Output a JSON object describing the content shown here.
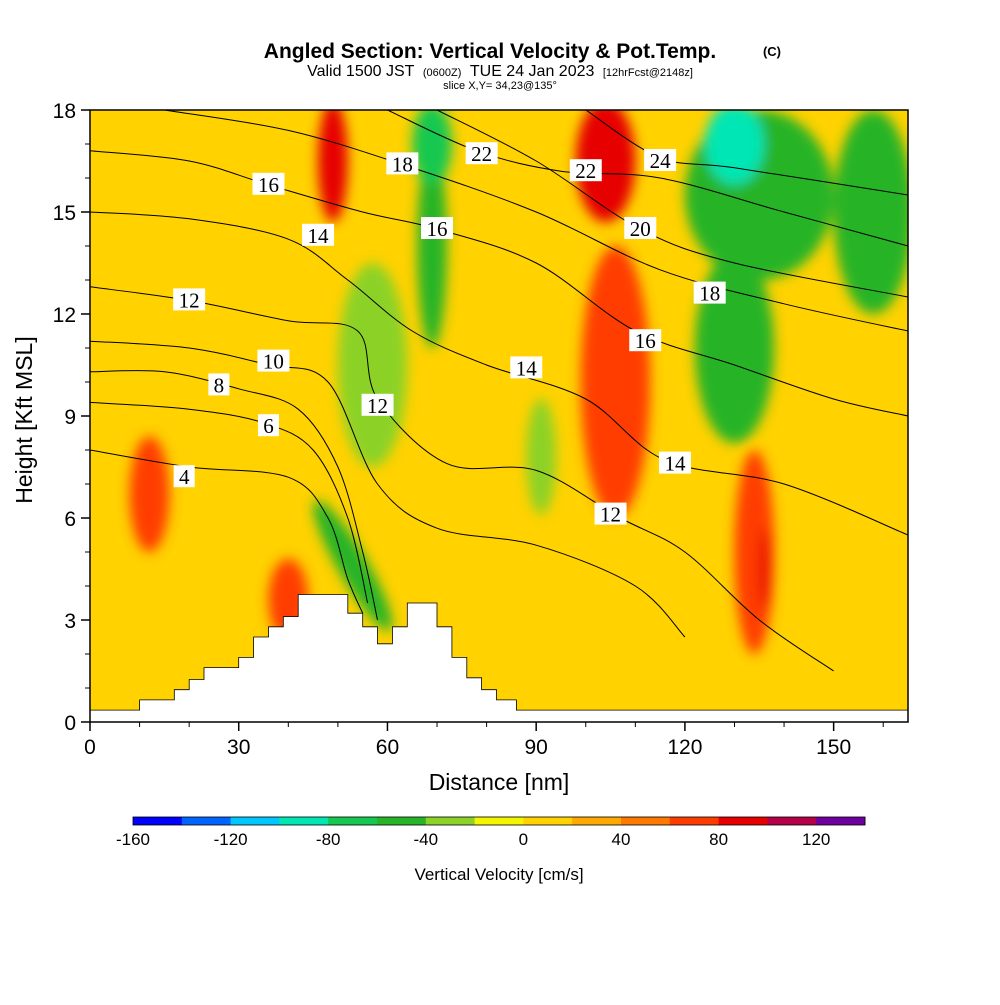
{
  "chart_data": {
    "type": "heatmap",
    "title": "Angled Section: Vertical Velocity & Pot.Temp.",
    "title_mark": "(C)",
    "subtitle_parts": [
      "Valid 1500 JST",
      "(0600Z)",
      "TUE 24 Jan 2023",
      "[12hrFcst@2148z]"
    ],
    "slice_label": "slice X,Y= 34,23@135°",
    "xlabel": "Distance [nm]",
    "ylabel": "Height [Kft MSL]",
    "xlim": [
      0,
      165
    ],
    "ylim": [
      0,
      18
    ],
    "x_ticks": [
      0,
      30,
      60,
      90,
      120,
      150
    ],
    "y_ticks": [
      0,
      3,
      6,
      9,
      12,
      15,
      18
    ],
    "colorbar": {
      "label": "Vertical Velocity [cm/s]",
      "range": [
        -160,
        140
      ],
      "step": 20,
      "tick_values": [
        -160,
        -120,
        -80,
        -40,
        0,
        40,
        80,
        120
      ],
      "colors": [
        "#0000ff",
        "#0064ff",
        "#00c8ff",
        "#00e6b4",
        "#14c850",
        "#28b428",
        "#8cd228",
        "#f5f500",
        "#ffd200",
        "#ffaa00",
        "#ff7800",
        "#ff3c00",
        "#e60000",
        "#b40046",
        "#6e00a0"
      ]
    },
    "terrain_profile": [
      [
        0,
        0.35
      ],
      [
        10,
        0.35
      ],
      [
        10,
        0.65
      ],
      [
        17,
        0.65
      ],
      [
        17,
        0.95
      ],
      [
        20,
        0.95
      ],
      [
        20,
        1.25
      ],
      [
        23,
        1.25
      ],
      [
        23,
        1.6
      ],
      [
        30,
        1.6
      ],
      [
        30,
        1.9
      ],
      [
        33,
        1.9
      ],
      [
        33,
        2.5
      ],
      [
        36,
        2.5
      ],
      [
        36,
        2.8
      ],
      [
        39,
        2.8
      ],
      [
        39,
        3.1
      ],
      [
        42,
        3.1
      ],
      [
        42,
        3.75
      ],
      [
        52,
        3.75
      ],
      [
        52,
        3.2
      ],
      [
        55,
        3.2
      ],
      [
        55,
        2.8
      ],
      [
        58,
        2.8
      ],
      [
        58,
        2.3
      ],
      [
        61,
        2.3
      ],
      [
        61,
        2.8
      ],
      [
        64,
        2.8
      ],
      [
        64,
        3.5
      ],
      [
        70,
        3.5
      ],
      [
        70,
        2.8
      ],
      [
        73,
        2.8
      ],
      [
        73,
        1.9
      ],
      [
        76,
        1.9
      ],
      [
        76,
        1.3
      ],
      [
        79,
        1.3
      ],
      [
        79,
        0.95
      ],
      [
        82,
        0.95
      ],
      [
        82,
        0.65
      ],
      [
        86,
        0.65
      ],
      [
        86,
        0.35
      ],
      [
        165,
        0.35
      ]
    ],
    "velocity_features": [
      {
        "x": 12,
        "y": 6.7,
        "rx": 4,
        "ry": 1.7,
        "value": 60
      },
      {
        "x": 40,
        "y": 3.6,
        "rx": 4,
        "ry": 1.2,
        "value": 60
      },
      {
        "x": 53,
        "y": 4.6,
        "rx": 3,
        "ry": 2.2,
        "value": -60,
        "angle": -30
      },
      {
        "x": 49,
        "y": 16.5,
        "rx": 3,
        "ry": 1.8,
        "value": 80
      },
      {
        "x": 69,
        "y": 14,
        "rx": 3,
        "ry": 3,
        "value": -60
      },
      {
        "x": 69,
        "y": 17,
        "rx": 4,
        "ry": 1.2,
        "value": -80
      },
      {
        "x": 57,
        "y": 10.5,
        "rx": 7,
        "ry": 3,
        "value": -40
      },
      {
        "x": 91,
        "y": 7.8,
        "rx": 3,
        "ry": 1.7,
        "value": -40
      },
      {
        "x": 104,
        "y": 16.5,
        "rx": 6,
        "ry": 1.8,
        "value": 80
      },
      {
        "x": 106,
        "y": 10,
        "rx": 7,
        "ry": 4,
        "value": 60
      },
      {
        "x": 134,
        "y": 5,
        "rx": 4,
        "ry": 3,
        "value": 60
      },
      {
        "x": 136,
        "y": 4.5,
        "rx": 1,
        "ry": 1.2,
        "value": 80
      },
      {
        "x": 135,
        "y": 15.5,
        "rx": 15,
        "ry": 2.5,
        "value": -60
      },
      {
        "x": 130,
        "y": 17,
        "rx": 6,
        "ry": 1.2,
        "value": -100
      },
      {
        "x": 130,
        "y": 11,
        "rx": 8,
        "ry": 2.8,
        "value": -60
      },
      {
        "x": 158,
        "y": 15,
        "rx": 8,
        "ry": 3,
        "value": -60
      }
    ],
    "isentropes": [
      {
        "value": 4,
        "label_at": [
          19,
          7.2
        ],
        "points": [
          [
            0,
            8
          ],
          [
            20,
            7.5
          ],
          [
            40,
            7.2
          ],
          [
            48,
            6
          ],
          [
            52,
            4.2
          ],
          [
            55,
            3.2
          ]
        ]
      },
      {
        "value": 6,
        "label_at": [
          35,
          8.8
        ],
        "points": [
          [
            0,
            9.4
          ],
          [
            20,
            9.2
          ],
          [
            35,
            8.8
          ],
          [
            45,
            8
          ],
          [
            52,
            6
          ],
          [
            56,
            3.5
          ]
        ]
      },
      {
        "value": 8,
        "label_at": [
          26,
          9.9
        ],
        "points": [
          [
            0,
            10.3
          ],
          [
            15,
            10.3
          ],
          [
            30,
            9.8
          ],
          [
            42,
            9.2
          ],
          [
            50,
            7.5
          ],
          [
            55,
            5
          ],
          [
            58,
            3
          ]
        ]
      },
      {
        "value": 10,
        "label_at": [
          36,
          10.5
        ],
        "points": [
          [
            0,
            11.2
          ],
          [
            20,
            11
          ],
          [
            36,
            10.5
          ],
          [
            48,
            10
          ],
          [
            58,
            7
          ],
          [
            70,
            5.7
          ],
          [
            90,
            5.2
          ],
          [
            110,
            4
          ],
          [
            120,
            2.5
          ]
        ]
      },
      {
        "value": 12,
        "label_at": [
          20,
          12.4
        ],
        "points": [
          [
            0,
            12.8
          ],
          [
            20,
            12.4
          ],
          [
            40,
            11.8
          ],
          [
            54,
            11.5
          ],
          [
            58,
            9.5
          ],
          [
            72,
            7.6
          ],
          [
            90,
            7.4
          ],
          [
            107,
            6
          ],
          [
            120,
            5
          ],
          [
            135,
            3
          ],
          [
            150,
            1.5
          ]
        ]
      },
      {
        "value": 14,
        "label_at": [
          44,
          14.3
        ],
        "points": [
          [
            0,
            15
          ],
          [
            20,
            14.8
          ],
          [
            40,
            14.2
          ],
          [
            52,
            13
          ],
          [
            65,
            11.5
          ],
          [
            80,
            10.5
          ],
          [
            100,
            9.5
          ],
          [
            116,
            7.7
          ],
          [
            140,
            7
          ],
          [
            165,
            5.5
          ]
        ]
      },
      {
        "value": 16,
        "label_at": [
          36,
          15.8
        ],
        "points": [
          [
            0,
            16.8
          ],
          [
            20,
            16.5
          ],
          [
            36,
            15.8
          ],
          [
            55,
            15
          ],
          [
            70,
            14.5
          ],
          [
            90,
            13.5
          ],
          [
            110,
            11.5
          ],
          [
            130,
            10.5
          ],
          [
            150,
            9.5
          ],
          [
            165,
            9
          ]
        ]
      },
      {
        "value": 18,
        "label_at": [
          63,
          16.4
        ],
        "points": [
          [
            15,
            18
          ],
          [
            40,
            17.4
          ],
          [
            63,
            16.4
          ],
          [
            90,
            15
          ],
          [
            115,
            13.3
          ],
          [
            140,
            12.3
          ],
          [
            165,
            11.5
          ]
        ]
      },
      {
        "value": 20,
        "label_at": [
          111,
          14.5
        ],
        "points": [
          [
            70,
            18
          ],
          [
            90,
            16.5
          ],
          [
            111,
            14.5
          ],
          [
            130,
            13.5
          ],
          [
            165,
            12.5
          ]
        ]
      },
      {
        "value": 22,
        "label_at": [
          78,
          16.7
        ],
        "points": [
          [
            60,
            18
          ],
          [
            78,
            16.8
          ],
          [
            95,
            16.2
          ],
          [
            115,
            16
          ],
          [
            140,
            15
          ],
          [
            165,
            14
          ]
        ]
      },
      {
        "value": 24,
        "label_at": [
          115,
          16.4
        ],
        "points": [
          [
            100,
            18
          ],
          [
            115,
            16.6
          ],
          [
            130,
            16.3
          ],
          [
            165,
            15.5
          ]
        ]
      }
    ],
    "isentrope_label_placements": [
      {
        "value": 4,
        "x": 19,
        "y": 7.2
      },
      {
        "value": 6,
        "x": 36,
        "y": 8.7
      },
      {
        "value": 8,
        "x": 26,
        "y": 9.9
      },
      {
        "value": 10,
        "x": 37,
        "y": 10.6
      },
      {
        "value": 12,
        "x": 20,
        "y": 12.4
      },
      {
        "value": 12,
        "x": 58,
        "y": 9.3
      },
      {
        "value": 12,
        "x": 105,
        "y": 6.1
      },
      {
        "value": 14,
        "x": 46,
        "y": 14.3
      },
      {
        "value": 14,
        "x": 88,
        "y": 10.4
      },
      {
        "value": 14,
        "x": 118,
        "y": 7.6
      },
      {
        "value": 16,
        "x": 36,
        "y": 15.8
      },
      {
        "value": 16,
        "x": 70,
        "y": 14.5
      },
      {
        "value": 16,
        "x": 112,
        "y": 11.2
      },
      {
        "value": 18,
        "x": 63,
        "y": 16.4
      },
      {
        "value": 18,
        "x": 125,
        "y": 12.6
      },
      {
        "value": 20,
        "x": 111,
        "y": 14.5
      },
      {
        "value": 22,
        "x": 79,
        "y": 16.7
      },
      {
        "value": 22,
        "x": 100,
        "y": 16.2
      },
      {
        "value": 24,
        "x": 115,
        "y": 16.5
      }
    ]
  }
}
